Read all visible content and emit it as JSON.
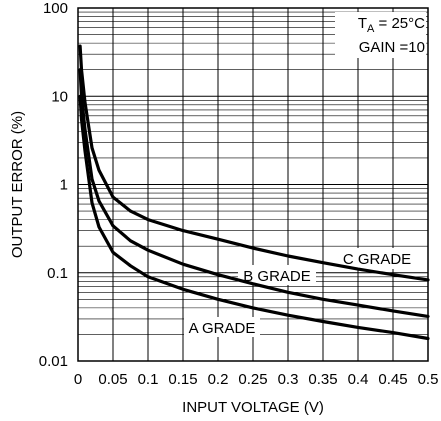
{
  "chart_data": {
    "type": "line",
    "xlabel": "INPUT VOLTAGE (V)",
    "ylabel": "OUTPUT ERROR (%)",
    "xlim": [
      0,
      0.5
    ],
    "ylim": [
      0.01,
      100
    ],
    "yscale": "log",
    "grid": true,
    "x_ticks": [
      "0",
      "0.05",
      "0.1",
      "0.15",
      "0.2",
      "0.25",
      "0.3",
      "0.35",
      "0.4",
      "0.45",
      "0.5"
    ],
    "y_ticks": [
      "0.01",
      "0.1",
      "1",
      "10",
      "100"
    ],
    "annotations": {
      "ta_main": "T",
      "ta_sub": "A",
      "ta_rest": " = 25°C",
      "gain": "GAIN =10"
    },
    "series": [
      {
        "name": "C GRADE",
        "x": [
          0.003,
          0.005,
          0.01,
          0.02,
          0.03,
          0.05,
          0.075,
          0.1,
          0.15,
          0.2,
          0.25,
          0.3,
          0.35,
          0.4,
          0.45,
          0.5
        ],
        "y": [
          37,
          20,
          8.5,
          2.6,
          1.45,
          0.72,
          0.5,
          0.4,
          0.3,
          0.24,
          0.19,
          0.155,
          0.13,
          0.11,
          0.095,
          0.083
        ]
      },
      {
        "name": "B GRADE",
        "x": [
          0.003,
          0.005,
          0.01,
          0.02,
          0.03,
          0.05,
          0.075,
          0.1,
          0.15,
          0.2,
          0.25,
          0.3,
          0.35,
          0.4,
          0.45,
          0.5
        ],
        "y": [
          20,
          10,
          4.2,
          1.15,
          0.65,
          0.34,
          0.23,
          0.18,
          0.125,
          0.095,
          0.075,
          0.06,
          0.05,
          0.043,
          0.037,
          0.032
        ]
      },
      {
        "name": "A GRADE",
        "x": [
          0.003,
          0.005,
          0.01,
          0.02,
          0.03,
          0.05,
          0.075,
          0.1,
          0.15,
          0.2,
          0.25,
          0.3,
          0.35,
          0.4,
          0.45,
          0.5
        ],
        "y": [
          10,
          5.5,
          2.4,
          0.62,
          0.33,
          0.17,
          0.12,
          0.09,
          0.065,
          0.05,
          0.04,
          0.033,
          0.028,
          0.024,
          0.021,
          0.018
        ]
      }
    ]
  }
}
